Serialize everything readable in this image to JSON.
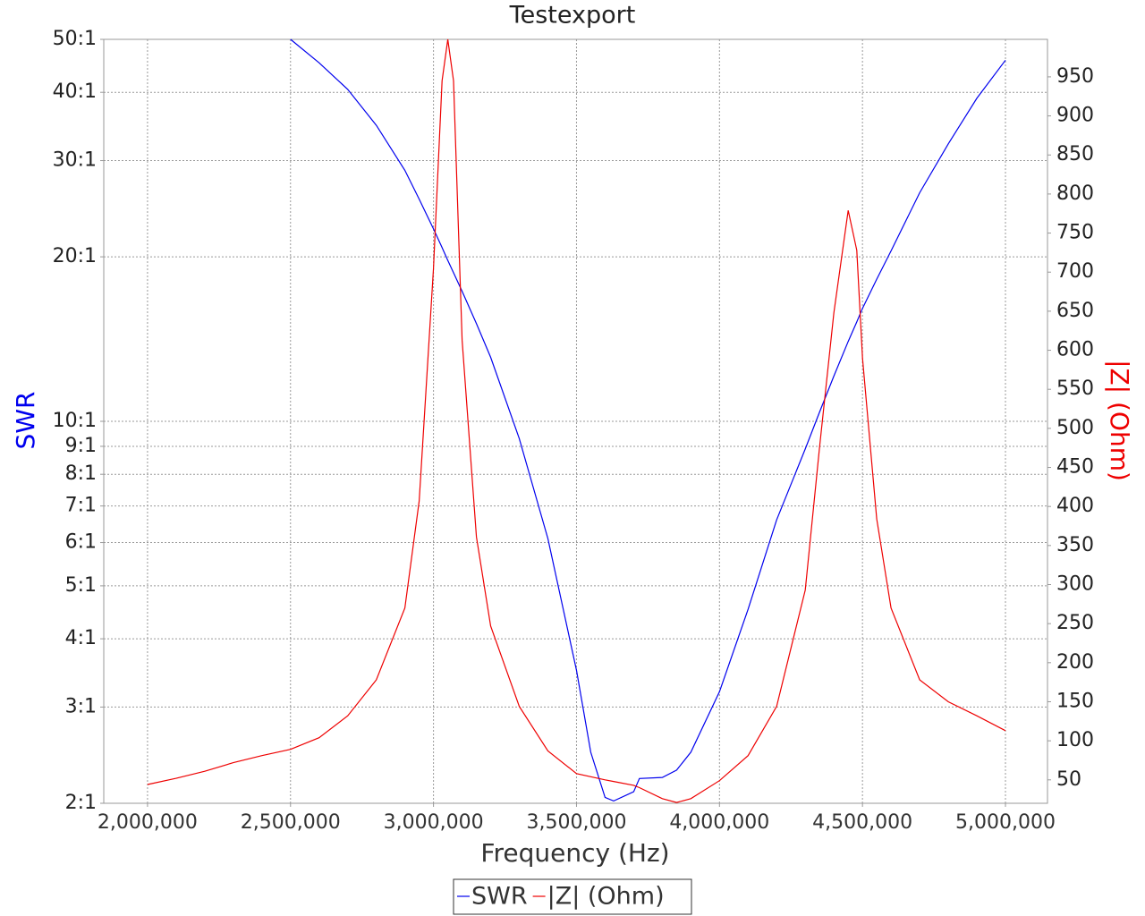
{
  "chart_data": {
    "type": "line",
    "title": "Testexport",
    "x_label": "Frequency (Hz)",
    "y_label": "SWR",
    "y2_label": "|Z| (Ohm)",
    "x": [
      2000000,
      2100000,
      2200000,
      2300000,
      2400000,
      2500000,
      2600000,
      2700000,
      2800000,
      2900000,
      2950000,
      3000000,
      3030000,
      3050000,
      3070000,
      3100000,
      3150000,
      3200000,
      3300000,
      3400000,
      3500000,
      3550000,
      3600000,
      3630000,
      3700000,
      3720000,
      3800000,
      3850000,
      3900000,
      4000000,
      4100000,
      4200000,
      4300000,
      4350000,
      4400000,
      4450000,
      4480000,
      4500000,
      4550000,
      4600000,
      4700000,
      4800000,
      4900000,
      5000000
    ],
    "series": [
      {
        "name": "SWR",
        "color": "#0000ee",
        "axis": "y",
        "values": [
          null,
          null,
          null,
          null,
          null,
          50,
          45.3,
          40.5,
          34.8,
          28.8,
          25.5,
          22.5,
          20.8,
          19.7,
          18.7,
          17.3,
          15.1,
          13.1,
          9.3,
          6.1,
          3.5,
          2.48,
          2.05,
          2.02,
          2.1,
          2.22,
          2.23,
          2.3,
          2.48,
          3.2,
          4.53,
          6.6,
          8.9,
          10.4,
          12.1,
          14,
          15.2,
          16.1,
          18.2,
          20.5,
          26.2,
          32.2,
          39.0,
          45.8
        ]
      },
      {
        "name": "|Z| (Ohm)",
        "color": "#ee0000",
        "axis": "y2",
        "values": [
          44,
          52,
          61,
          72,
          81,
          89,
          104,
          132,
          178,
          270,
          407,
          705,
          945,
          998,
          945,
          613,
          361,
          247,
          144,
          87,
          58,
          54,
          50,
          48,
          43,
          40,
          26,
          21,
          26,
          49,
          81,
          144,
          293,
          476,
          648,
          779,
          728,
          590,
          384,
          270,
          178,
          150,
          132,
          113
        ]
      }
    ],
    "xlim": [
      1847000,
      5147000
    ],
    "xticks": [
      {
        "value": 2000000,
        "label": "2,000,000"
      },
      {
        "value": 2500000,
        "label": "2,500,000"
      },
      {
        "value": 3000000,
        "label": "3,000,000"
      },
      {
        "value": 3500000,
        "label": "3,500,000"
      },
      {
        "value": 4000000,
        "label": "4,000,000"
      },
      {
        "value": 4500000,
        "label": "4,500,000"
      },
      {
        "value": 5000000,
        "label": "5,000,000"
      }
    ],
    "ylim": [
      2,
      50
    ],
    "ylog": true,
    "yticks": [
      {
        "value": 2,
        "label": "2:1"
      },
      {
        "value": 3,
        "label": "3:1"
      },
      {
        "value": 4,
        "label": "4:1"
      },
      {
        "value": 5,
        "label": "5:1"
      },
      {
        "value": 6,
        "label": "6:1"
      },
      {
        "value": 7,
        "label": "7:1"
      },
      {
        "value": 8,
        "label": "8:1"
      },
      {
        "value": 9,
        "label": "9:1"
      },
      {
        "value": 10,
        "label": "10:1"
      },
      {
        "value": 20,
        "label": "20:1"
      },
      {
        "value": 30,
        "label": "30:1"
      },
      {
        "value": 40,
        "label": "40:1"
      },
      {
        "value": 50,
        "label": "50:1"
      }
    ],
    "y2lim": [
      20,
      998
    ],
    "y2ticks": [
      50,
      100,
      150,
      200,
      250,
      300,
      350,
      400,
      450,
      500,
      550,
      600,
      650,
      700,
      750,
      800,
      850,
      900,
      950
    ],
    "grid": true,
    "legend": "bottom"
  }
}
